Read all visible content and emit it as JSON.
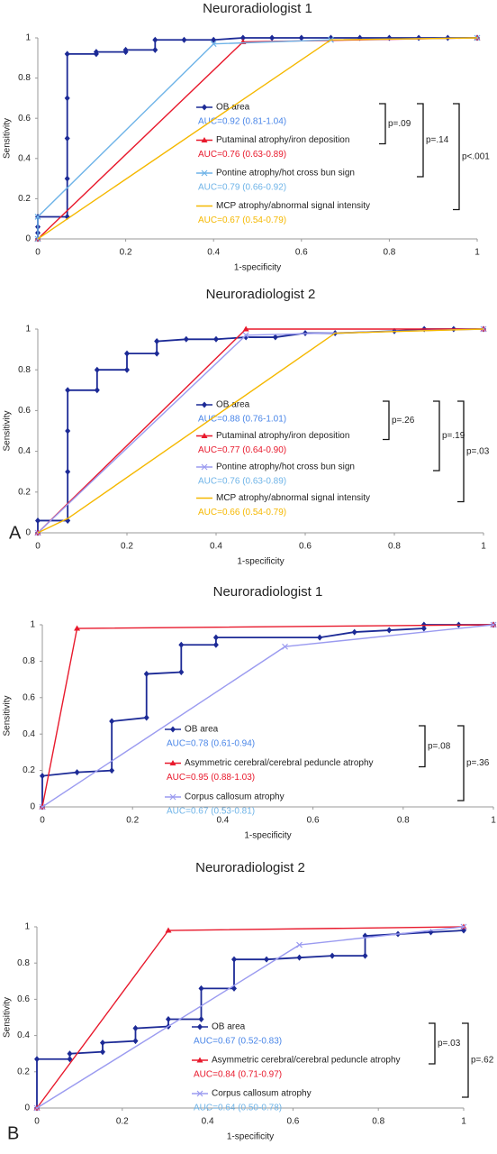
{
  "chart_data": [
    {
      "type": "line",
      "title": "Neuroradiologist 1",
      "xlabel": "1-specificity",
      "ylabel": "Sensitivity",
      "xlim": [
        0,
        1
      ],
      "ylim": [
        0,
        1
      ],
      "xticks": [
        0,
        0.2,
        0.4,
        0.6,
        0.8,
        1
      ],
      "yticks": [
        0,
        0.2,
        0.4,
        0.6,
        0.8,
        1
      ],
      "series": [
        {
          "name": "OB area",
          "color": "#1c2a96",
          "marker": "diamond",
          "label_color": "#4a86e8",
          "auc_label": "AUC=0.92 (0.81-1.04)",
          "x": [
            0,
            0,
            0,
            0,
            0.067,
            0.067,
            0.067,
            0.067,
            0.067,
            0.133,
            0.133,
            0.2,
            0.2,
            0.267,
            0.267,
            0.333,
            0.4,
            0.467,
            0.533,
            0.6,
            0.667,
            0.733,
            0.8,
            0.867,
            0.933,
            1
          ],
          "values": [
            0,
            0.03,
            0.06,
            0.11,
            0.11,
            0.3,
            0.5,
            0.7,
            0.92,
            0.92,
            0.93,
            0.93,
            0.94,
            0.94,
            0.99,
            0.99,
            0.99,
            1,
            1,
            1,
            1,
            1,
            1,
            1,
            1,
            1
          ]
        },
        {
          "name": "Putaminal atrophy/iron deposition",
          "color": "#e8192c",
          "marker": "triangle",
          "label_color": "#e8192c",
          "auc_label": "AUC=0.76 (0.63-0.89)",
          "x": [
            0,
            0.467,
            1
          ],
          "values": [
            0,
            0.98,
            1
          ]
        },
        {
          "name": "Pontine atrophy/hot cross bun sign",
          "color": "#6fb4e8",
          "marker": "x",
          "label_color": "#6fb4e8",
          "auc_label": "AUC=0.79 (0.66-0.92)",
          "x": [
            0,
            0,
            0.4,
            0.667,
            1
          ],
          "values": [
            0,
            0.11,
            0.97,
            0.99,
            1
          ]
        },
        {
          "name": "MCP atrophy/abnormal signal intensity",
          "color": "#f5b800",
          "marker": "none",
          "label_color": "#f5b800",
          "auc_label": "AUC=0.67 (0.54-0.79)",
          "x": [
            0,
            0.667,
            1
          ],
          "values": [
            0,
            0.99,
            1
          ]
        }
      ],
      "annotations": [
        "p=.09",
        "p=.14",
        "p<.001"
      ]
    },
    {
      "type": "line",
      "title": "Neuroradiologist 2",
      "xlabel": "1-specificity",
      "ylabel": "Sensitivity",
      "panel_label": "A",
      "xlim": [
        0,
        1
      ],
      "ylim": [
        0,
        1
      ],
      "xticks": [
        0,
        0.2,
        0.4,
        0.6,
        0.8,
        1
      ],
      "yticks": [
        0,
        0.2,
        0.4,
        0.6,
        0.8,
        1
      ],
      "series": [
        {
          "name": "OB area",
          "color": "#1c2a96",
          "marker": "diamond",
          "label_color": "#4a86e8",
          "auc_label": "AUC=0.88 (0.76-1.01)",
          "x": [
            0,
            0,
            0.067,
            0.067,
            0.067,
            0.067,
            0.133,
            0.133,
            0.2,
            0.2,
            0.267,
            0.267,
            0.333,
            0.4,
            0.467,
            0.533,
            0.6,
            0.667,
            0.8,
            0.867,
            0.933,
            1
          ],
          "values": [
            0,
            0.06,
            0.06,
            0.3,
            0.5,
            0.7,
            0.7,
            0.8,
            0.8,
            0.88,
            0.88,
            0.94,
            0.95,
            0.95,
            0.96,
            0.96,
            0.98,
            0.98,
            0.99,
            1,
            1,
            1
          ]
        },
        {
          "name": "Putaminal atrophy/iron deposition",
          "color": "#e8192c",
          "marker": "triangle",
          "label_color": "#e8192c",
          "auc_label": "AUC=0.77 (0.64-0.90)",
          "x": [
            0,
            0.467,
            1
          ],
          "values": [
            0,
            1,
            1
          ]
        },
        {
          "name": "Pontine atrophy/hot cross bun sign",
          "color": "#9b9bf0",
          "marker": "x",
          "label_color": "#6fb4e8",
          "auc_label": "AUC=0.76 (0.63-0.89)",
          "x": [
            0,
            0.467,
            1
          ],
          "values": [
            0,
            0.97,
            1
          ]
        },
        {
          "name": "MCP atrophy/abnormal signal intensity",
          "color": "#f5b800",
          "marker": "none",
          "label_color": "#f5b800",
          "auc_label": "AUC=0.66 (0.54-0.79)",
          "x": [
            0,
            0.067,
            0.667,
            1
          ],
          "values": [
            0,
            0.07,
            0.98,
            1
          ]
        }
      ],
      "annotations": [
        "p=.26",
        "p=.19",
        "p=.03"
      ]
    },
    {
      "type": "line",
      "title": "Neuroradiologist 1",
      "xlabel": "1-specificity",
      "ylabel": "Sensitivity",
      "xlim": [
        0,
        1
      ],
      "ylim": [
        0,
        1
      ],
      "xticks": [
        0,
        0.2,
        0.4,
        0.6,
        0.8,
        1
      ],
      "yticks": [
        0,
        0.2,
        0.4,
        0.6,
        0.8,
        1
      ],
      "series": [
        {
          "name": "OB area",
          "color": "#1c2a96",
          "marker": "diamond",
          "label_color": "#4a86e8",
          "auc_label": "AUC=0.78 (0.61-0.94)",
          "x": [
            0,
            0,
            0.077,
            0.154,
            0.154,
            0.231,
            0.231,
            0.308,
            0.308,
            0.385,
            0.385,
            0.615,
            0.692,
            0.769,
            0.846,
            0.846,
            0.923,
            1
          ],
          "values": [
            0,
            0.17,
            0.19,
            0.2,
            0.47,
            0.49,
            0.73,
            0.74,
            0.89,
            0.89,
            0.93,
            0.93,
            0.96,
            0.97,
            0.98,
            1,
            1,
            1
          ]
        },
        {
          "name": "Asymmetric cerebral/cerebral peduncle atrophy",
          "color": "#e8192c",
          "marker": "triangle",
          "label_color": "#e8192c",
          "auc_label": "AUC=0.95 (0.88-1.03)",
          "x": [
            0,
            0.077,
            1
          ],
          "values": [
            0,
            0.98,
            1
          ]
        },
        {
          "name": "Corpus callosum atrophy",
          "color": "#9b9bf0",
          "marker": "x",
          "label_color": "#6fb4e8",
          "auc_label": "AUC=0.67 (0.53-0.81)",
          "x": [
            0,
            0.538,
            1
          ],
          "values": [
            0,
            0.88,
            1
          ]
        }
      ],
      "annotations": [
        "p=.08",
        "p=.36"
      ]
    },
    {
      "type": "line",
      "title": "Neuroradiologist 2",
      "xlabel": "1-specificity",
      "ylabel": "Sensitivity",
      "panel_label": "B",
      "xlim": [
        0,
        1
      ],
      "ylim": [
        0,
        1
      ],
      "xticks": [
        0,
        0.2,
        0.4,
        0.6,
        0.8,
        1
      ],
      "yticks": [
        0,
        0.2,
        0.4,
        0.6,
        0.8,
        1
      ],
      "series": [
        {
          "name": "OB area",
          "color": "#1c2a96",
          "marker": "diamond",
          "label_color": "#4a86e8",
          "auc_label": "AUC=0.67 (0.52-0.83)",
          "x": [
            0,
            0,
            0.077,
            0.077,
            0.154,
            0.154,
            0.231,
            0.231,
            0.308,
            0.308,
            0.385,
            0.385,
            0.462,
            0.462,
            0.538,
            0.615,
            0.692,
            0.769,
            0.769,
            0.846,
            0.923,
            1
          ],
          "values": [
            0,
            0.27,
            0.27,
            0.3,
            0.31,
            0.36,
            0.37,
            0.44,
            0.45,
            0.49,
            0.49,
            0.66,
            0.66,
            0.82,
            0.82,
            0.83,
            0.84,
            0.84,
            0.95,
            0.96,
            0.97,
            0.98
          ]
        },
        {
          "name": "Asymmetric cerebral/cerebral peduncle atrophy",
          "color": "#e8192c",
          "marker": "triangle",
          "label_color": "#e8192c",
          "auc_label": "AUC=0.84 (0.71-0.97)",
          "x": [
            0,
            0.308,
            1
          ],
          "values": [
            0,
            0.98,
            1
          ]
        },
        {
          "name": "Corpus callosum atrophy",
          "color": "#9b9bf0",
          "marker": "x",
          "label_color": "#6fb4e8",
          "auc_label": "AUC=0.64 (0.50-0.78)",
          "x": [
            0,
            0.615,
            1
          ],
          "values": [
            0,
            0.9,
            1
          ]
        }
      ],
      "annotations": [
        "p=.03",
        "p=.62"
      ]
    }
  ]
}
